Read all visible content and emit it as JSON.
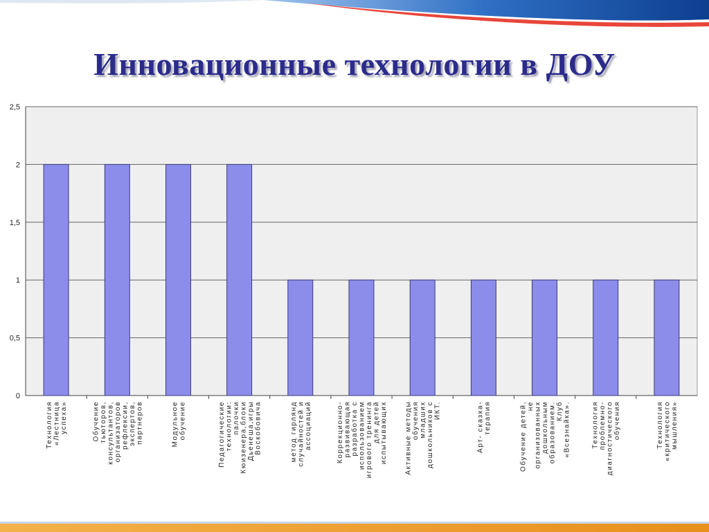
{
  "slide": {
    "title": "Инновационные технологии в ДОУ"
  },
  "colors": {
    "bar": "#8c8ceb",
    "bar_stroke": "#3a3a7a",
    "plot_bg": "#efefef",
    "title": "#2b2b8c"
  },
  "chart_data": {
    "type": "bar",
    "title": "",
    "xlabel": "",
    "ylabel": "",
    "ylim": [
      0,
      2.5
    ],
    "grid": true,
    "legend": "none",
    "yticks": [
      "0",
      "0,5",
      "1",
      "1,5",
      "2",
      "2,5"
    ],
    "categories": [
      [
        "Технология",
        "«Лестница",
        "успеха»"
      ],
      [
        "Обучение",
        "тьюторов,",
        "консультантов,",
        "организаторов",
        "рефлексии,",
        "экспертов,",
        "партнеров"
      ],
      [
        "Модульное",
        "обучение"
      ],
      [
        "Педагогические",
        "технологии:",
        "палочки",
        "Кюизенера,блоки",
        "Дьенеша,игры",
        "Воскобовича"
      ],
      [
        "метод гирлянд",
        "случайностей и",
        "ассоциаций"
      ],
      [
        "Коррекционно-",
        "развивающая",
        "разработка с",
        "использованием",
        "игрового тренинга",
        "для детей",
        "испытывающих"
      ],
      [
        "Активные методы",
        "обучения",
        "младших",
        "дошкольников с",
        "ИКТ."
      ],
      [
        "Арт- сказка-",
        "терапия"
      ],
      [
        "Обучение детей,",
        "не",
        "организованных",
        "дошкольным",
        "образованием.",
        "Клуб",
        "«Всезнайка»."
      ],
      [
        "Технология",
        "проблемно-",
        "диагностического",
        "обучения"
      ],
      [
        "Технология",
        "«критического",
        "мышления»"
      ]
    ],
    "values": [
      2,
      2,
      2,
      2,
      1,
      1,
      1,
      1,
      1,
      1,
      1
    ]
  }
}
